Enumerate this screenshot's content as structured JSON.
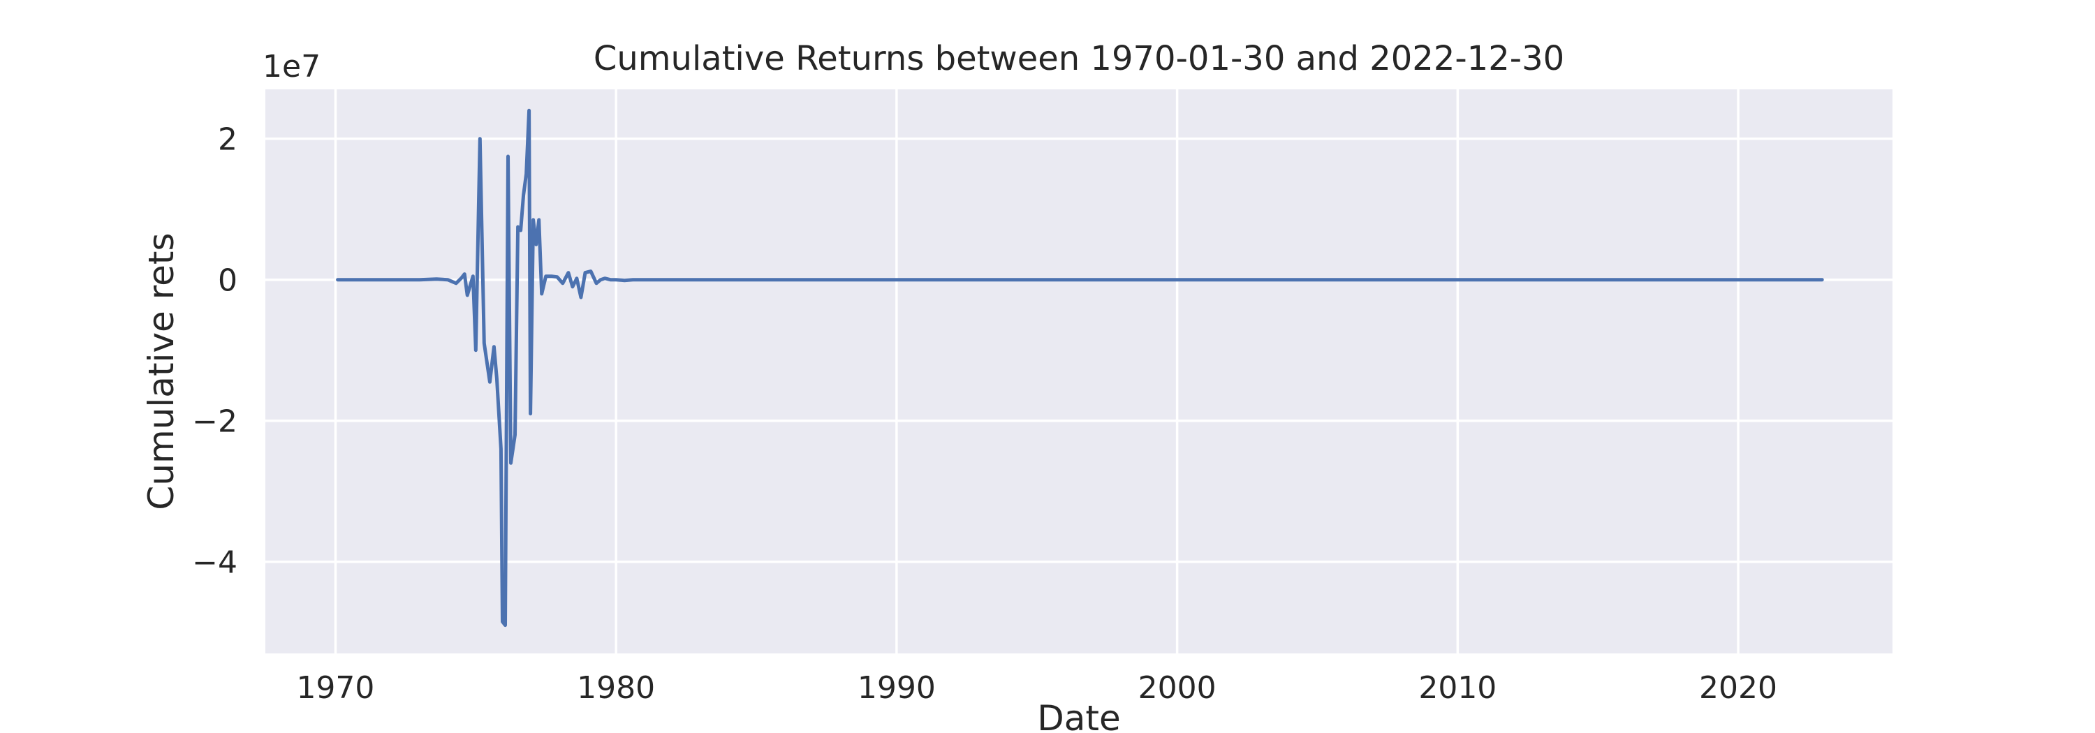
{
  "chart_data": {
    "type": "line",
    "title": "Cumulative Returns between 1970-01-30 and 2022-12-30",
    "xlabel": "Date",
    "ylabel": "Cumulative rets",
    "y_offset_label": "1e7",
    "xlim": [
      1967.5,
      2025.5
    ],
    "ylim": [
      -5.3,
      2.7
    ],
    "x_ticks": [
      1970,
      1980,
      1990,
      2000,
      2010,
      2020
    ],
    "x_tick_labels": [
      "1970",
      "1980",
      "1990",
      "2000",
      "2010",
      "2020"
    ],
    "y_ticks": [
      -4,
      -2,
      0,
      2
    ],
    "y_tick_labels": [
      "−4",
      "−2",
      "0",
      "2"
    ],
    "grid": true,
    "background": "#eaeaf2",
    "line_color": "#4c72b0",
    "series": [
      {
        "x": [
          1970.08,
          1973.0,
          1973.6,
          1974.0,
          1974.3,
          1974.5,
          1974.6,
          1974.7,
          1974.9,
          1975.0,
          1975.15,
          1975.3,
          1975.5,
          1975.65,
          1975.75,
          1975.9,
          1975.95,
          1976.05,
          1976.15,
          1976.25,
          1976.4,
          1976.5,
          1976.6,
          1976.7,
          1976.8,
          1976.9,
          1976.95,
          1977.05,
          1977.15,
          1977.25,
          1977.35,
          1977.5,
          1977.7,
          1977.9,
          1978.1,
          1978.3,
          1978.45,
          1978.6,
          1978.75,
          1978.9,
          1979.1,
          1979.3,
          1979.45,
          1979.6,
          1979.8,
          1980.0,
          1980.3,
          1980.6,
          1981.0,
          1985.0,
          1990.0,
          2000.0,
          2010.0,
          2022.99
        ],
        "y": [
          0.0,
          0.0,
          0.01,
          0.0,
          -0.05,
          0.03,
          0.08,
          -0.22,
          0.05,
          -1.0,
          2.0,
          -0.9,
          -1.45,
          -0.95,
          -1.4,
          -2.4,
          -4.85,
          -4.9,
          1.75,
          -2.6,
          -2.2,
          0.75,
          0.7,
          1.2,
          1.5,
          2.4,
          -1.9,
          0.85,
          0.5,
          0.85,
          -0.2,
          0.05,
          0.05,
          0.04,
          -0.05,
          0.1,
          -0.1,
          0.02,
          -0.25,
          0.1,
          0.12,
          -0.05,
          0.0,
          0.02,
          0.0,
          0.0,
          -0.01,
          0.0,
          0.0,
          0.0,
          0.0,
          0.0,
          0.0,
          0.0
        ]
      }
    ]
  }
}
